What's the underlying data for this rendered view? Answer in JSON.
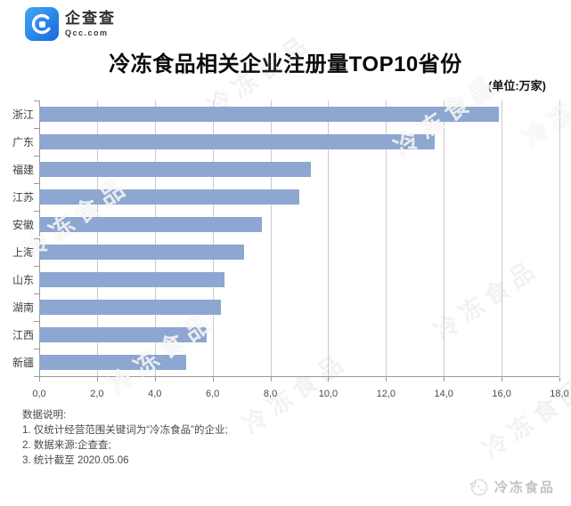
{
  "header": {
    "logo_name": "企查查",
    "logo_domain": "Qcc.com",
    "title": "冷冻食品相关企业注册量TOP10省份",
    "unit_label": "(单位:万家)"
  },
  "chart_data": {
    "type": "bar",
    "orientation": "horizontal",
    "title": "冷冻食品相关企业注册量TOP10省份",
    "unit": "万家",
    "categories": [
      "浙江",
      "广东",
      "福建",
      "江苏",
      "安徽",
      "上海",
      "山东",
      "湖南",
      "江西",
      "新疆"
    ],
    "values": [
      15.9,
      13.7,
      9.4,
      9.0,
      7.7,
      7.1,
      6.4,
      6.3,
      5.8,
      5.1
    ],
    "xlim": [
      0,
      18
    ],
    "x_tick_labels": [
      "0,0",
      "2,0",
      "4,0",
      "6,0",
      "8,0",
      "10,0",
      "12,0",
      "14,0",
      "16,0",
      "18,0"
    ],
    "grid": true,
    "legend": false,
    "bar_color": "#8da7d1",
    "gridline_color": "#cbcbcb"
  },
  "watermark": {
    "text": "冷冻食品"
  },
  "footer": {
    "heading": "数据说明:",
    "notes": [
      "1. 仅统计经营范围关键词为“冷冻食品”的企业;",
      "2. 数据来源:企查查;",
      "3. 统计截至 2020.05.06"
    ]
  },
  "brand": {
    "label": "冷冻食品"
  }
}
